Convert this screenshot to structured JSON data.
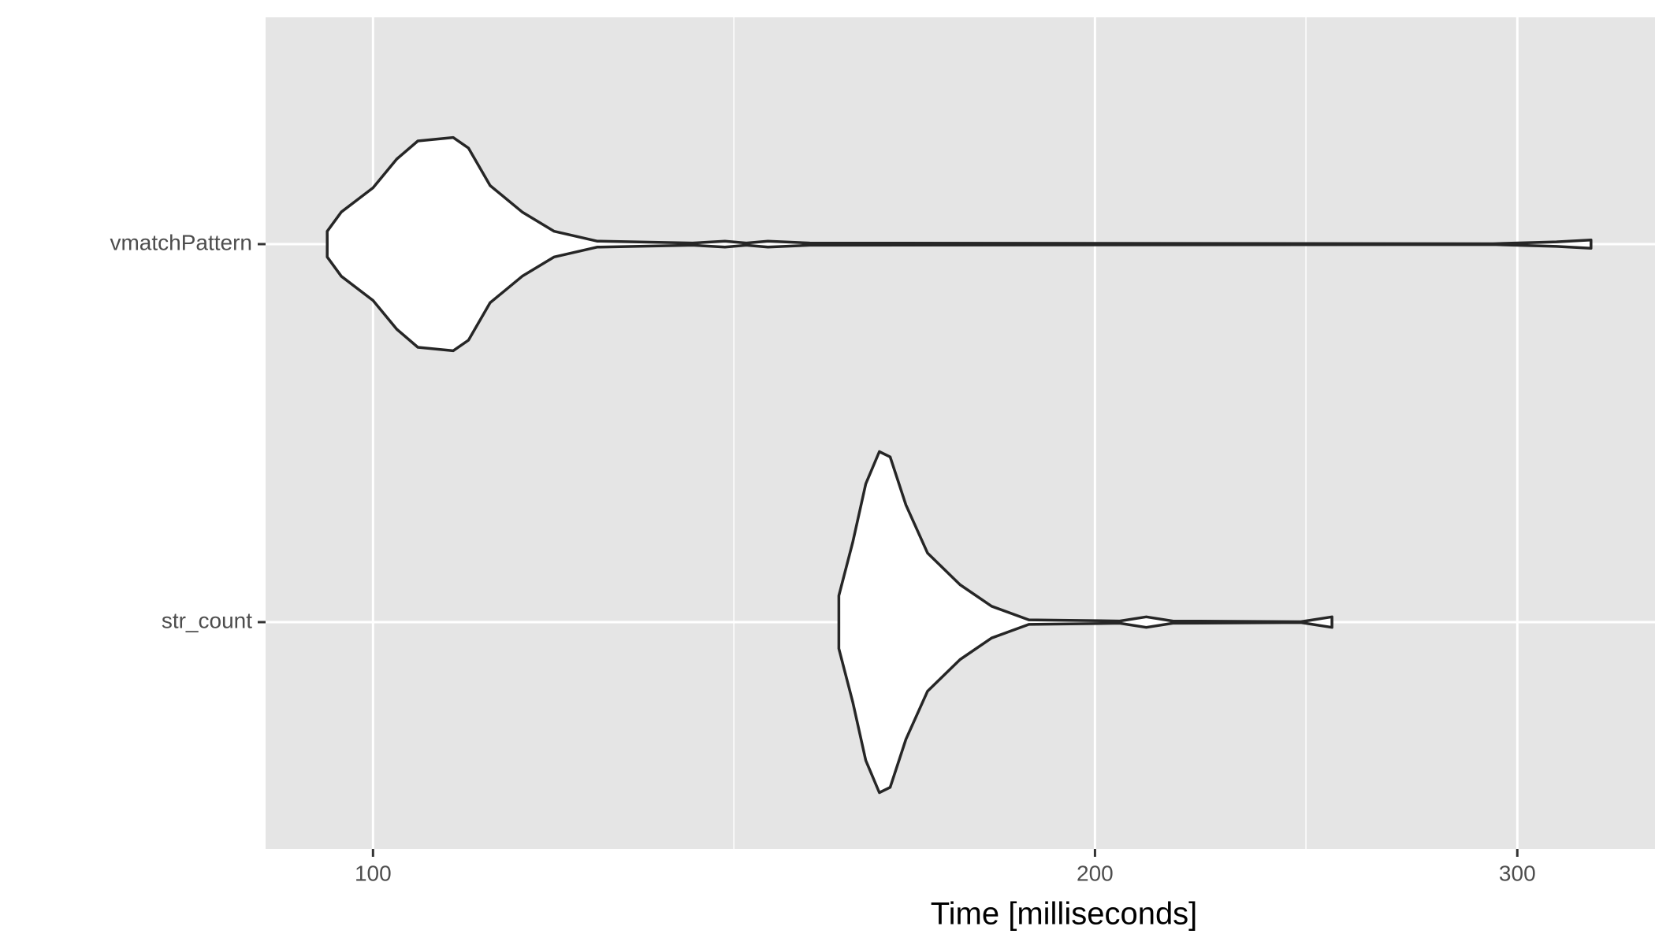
{
  "chart_data": {
    "type": "violin",
    "categories": [
      "str_count",
      "vmatchPattern"
    ],
    "violins": [
      {
        "x": [
          156.4,
          158.5,
          160.5,
          162.6,
          164.3,
          166.8,
          170.3,
          175.7,
          181.1,
          187.7,
          204.8,
          210.1,
          215.5,
          243.7,
          251.1
        ],
        "density": [
          0.07,
          0.211,
          0.366,
          0.451,
          0.437,
          0.31,
          0.183,
          0.099,
          0.042,
          0.006,
          0.003,
          0.014,
          0.003,
          0.001,
          0.014
        ]
      },
      {
        "x": [
          95.7,
          97.0,
          100,
          102.3,
          104.4,
          108.0,
          109.6,
          111.9,
          115.4,
          119.0,
          124.0,
          135.9,
          140.2,
          143.1,
          146.1,
          152.1,
          293.1,
          311.5,
          322.0
        ],
        "density": [
          0.034,
          0.085,
          0.149,
          0.225,
          0.273,
          0.282,
          0.254,
          0.155,
          0.085,
          0.034,
          0.008,
          0.003,
          0.008,
          0.003,
          0.008,
          0.003,
          0.001,
          0.006,
          0.011
        ]
      }
    ],
    "fill": "#ffffff",
    "line_color": "#262626",
    "xlabel": "Time [milliseconds]",
    "log_x": true,
    "xlim": [
      90.2,
      342.4
    ],
    "xticks": [
      100,
      200,
      300
    ],
    "x_minor_ticks": [
      141.4,
      244.9
    ],
    "grid": true
  }
}
